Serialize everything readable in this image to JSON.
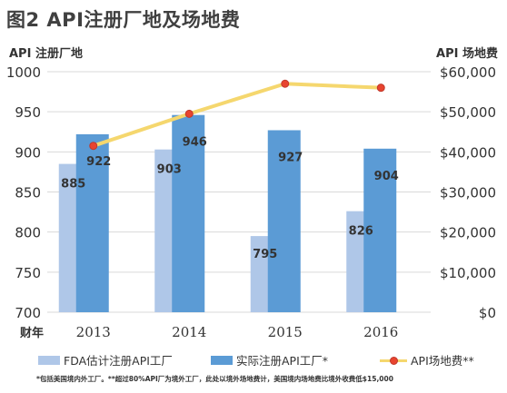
{
  "title": "图2 API注册厂地及场地费",
  "chart_data": {
    "type": "bar+line",
    "x_prefix": "财年",
    "categories": [
      "2013",
      "2014",
      "2015",
      "2016"
    ],
    "ylabel_left": "API 注册厂地",
    "ylabel_right": "API 场地费",
    "ylim_left": [
      700,
      1000
    ],
    "yticks_left": [
      "700",
      "750",
      "800",
      "850",
      "900",
      "950",
      "1000"
    ],
    "ylim_right": [
      0,
      60000
    ],
    "yticks_right": [
      "$0",
      "$10,000",
      "$20,000",
      "$30,000",
      "$40,000",
      "$50,000",
      "$60,000"
    ],
    "series": [
      {
        "name": "FDA估计注册API工厂",
        "type": "bar",
        "axis": "left",
        "values": [
          885,
          903,
          795,
          826
        ],
        "labels": [
          "885",
          "903",
          "795",
          "826"
        ],
        "color": "#afc7e8"
      },
      {
        "name": "实际注册API工厂*",
        "type": "bar",
        "axis": "left",
        "values": [
          922,
          946,
          927,
          904
        ],
        "labels": [
          "922",
          "946",
          "927",
          "904"
        ],
        "color": "#5b9bd5"
      },
      {
        "name": "API场地费**",
        "type": "line",
        "axis": "right",
        "values": [
          41500,
          49500,
          57000,
          56000
        ],
        "color": "#f5d76e",
        "marker_color": "#e8442f"
      }
    ],
    "grid": true,
    "legend": "bottom"
  },
  "footnote": "*包括美国境内外工厂。**超过80%API厂为境外工厂，此处以境外场地费计，美国境内场地费比境外收费低$15,000"
}
